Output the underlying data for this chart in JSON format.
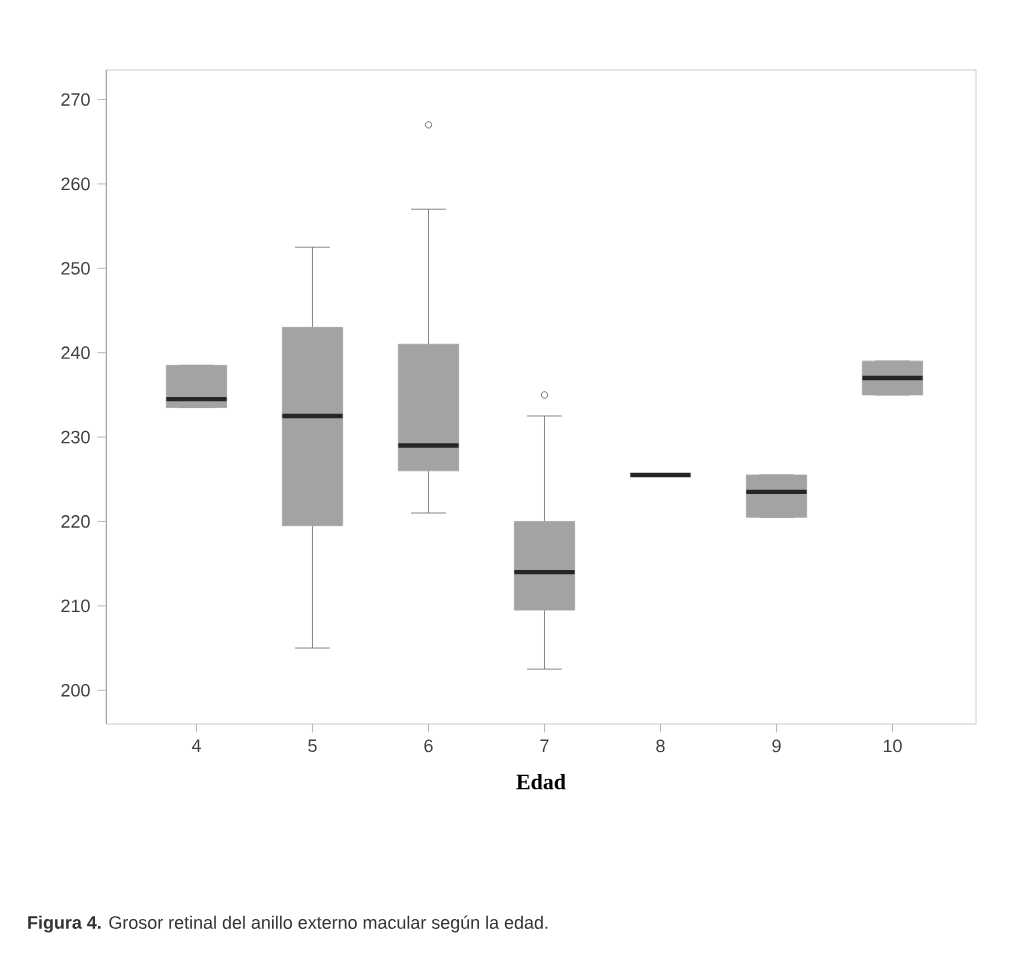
{
  "chart_data": {
    "type": "box",
    "xlabel": "Edad",
    "annotations": [
      "**Figura 4.** Grosor retinal del anillo externo macular según la edad."
    ],
    "categories": [
      "4",
      "5",
      "6",
      "7",
      "8",
      "9",
      "10"
    ],
    "series": [
      {
        "color": "#a3a3a3",
        "boxes": [
          {
            "low": 233.5,
            "q1": 233.5,
            "median": 234.5,
            "q3": 238.5,
            "high": 238.5
          },
          {
            "low": 205,
            "q1": 219.5,
            "median": 232.5,
            "q3": 243,
            "high": 252.5
          },
          {
            "low": 221,
            "q1": 226,
            "median": 229,
            "q3": 241,
            "high": 257,
            "outliers": [
              267
            ]
          },
          {
            "low": 202.5,
            "q1": 209.5,
            "median": 214,
            "q3": 220,
            "high": 232.5,
            "outliers": [
              235
            ]
          },
          {
            "low": 225.5,
            "q1": 225.5,
            "median": 225.5,
            "q3": 225.5,
            "high": 225.5
          },
          {
            "low": 220.5,
            "q1": 220.5,
            "median": 223.5,
            "q3": 225.5,
            "high": 225.5
          },
          {
            "low": 235,
            "q1": 235,
            "median": 237,
            "q3": 239,
            "high": 239
          }
        ]
      }
    ],
    "ylim": [
      196,
      273.5
    ],
    "yticks": [
      200,
      210,
      220,
      230,
      240,
      250,
      260,
      270
    ]
  }
}
